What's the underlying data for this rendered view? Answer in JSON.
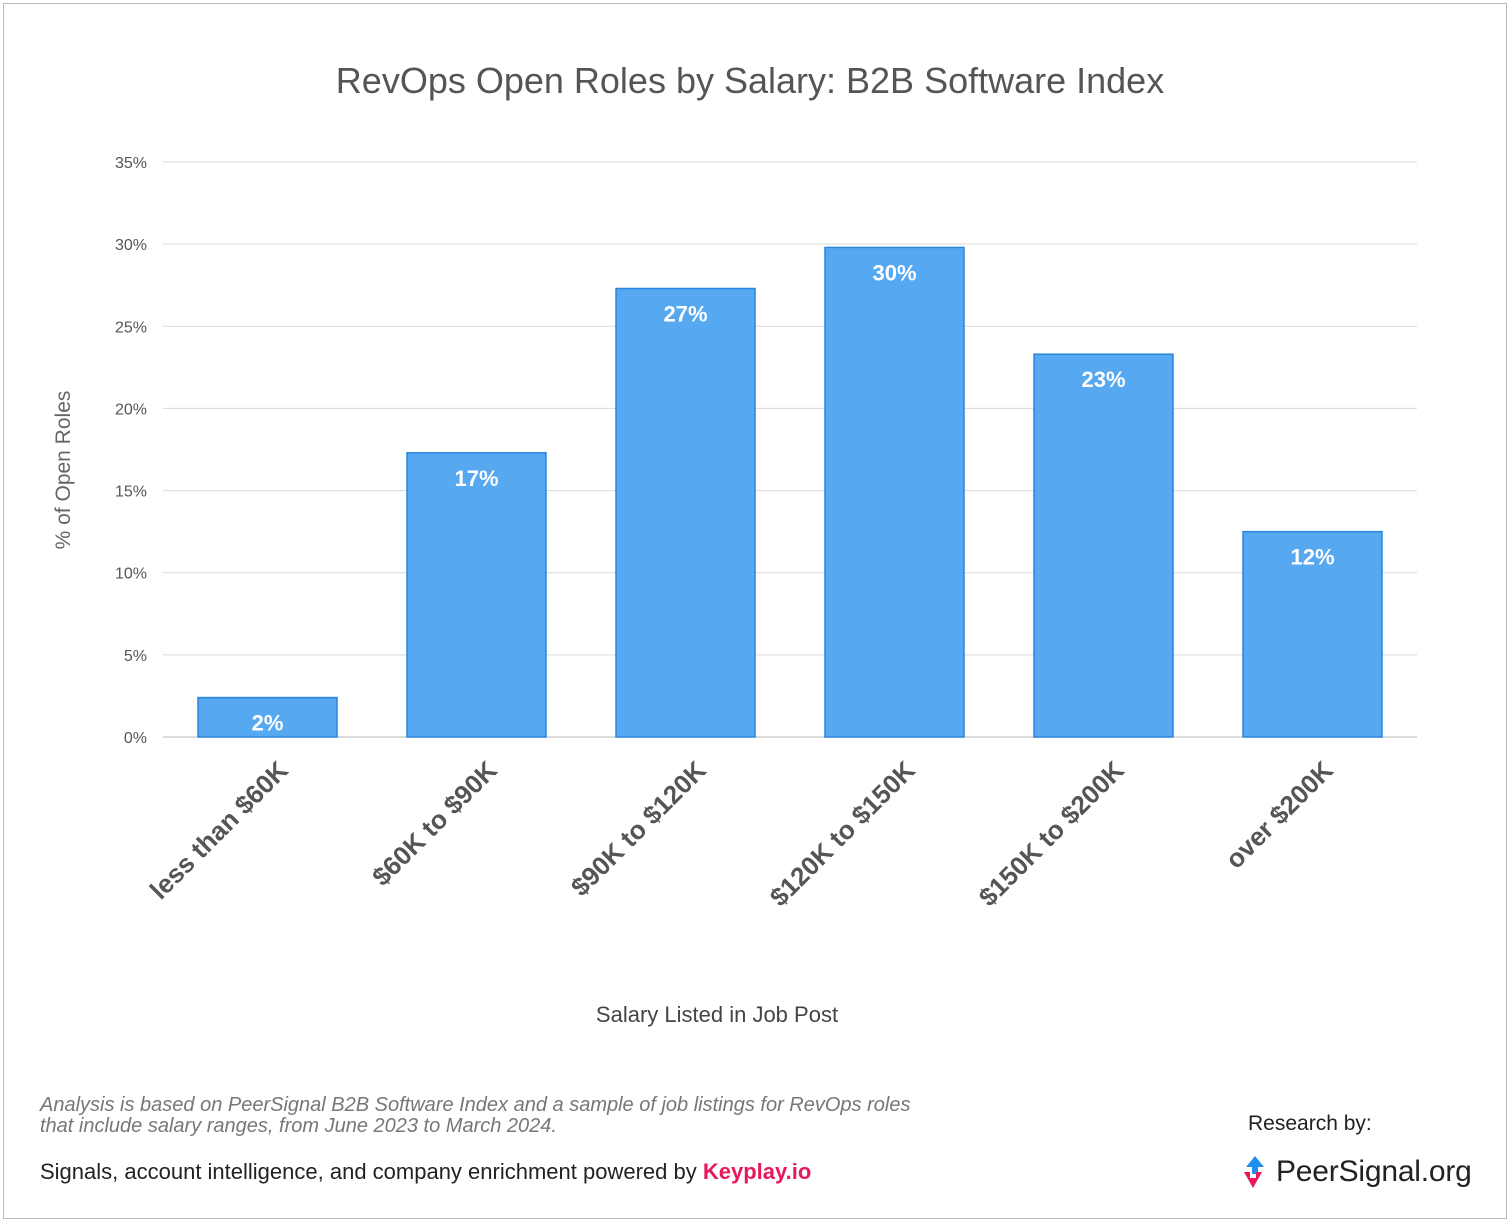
{
  "chart_data": {
    "type": "bar",
    "title": "RevOps Open Roles by Salary: B2B Software Index",
    "xlabel": "Salary Listed in Job Post",
    "ylabel": "% of Open Roles",
    "categories": [
      "less than $60K",
      "$60K to $90K",
      "$90K to $120K",
      "$120K to $150K",
      "$150K to $200K",
      "over $200K"
    ],
    "values": [
      2.4,
      17.3,
      27.3,
      29.8,
      23.3,
      12.5
    ],
    "data_labels": [
      "2%",
      "17%",
      "27%",
      "30%",
      "23%",
      "12%"
    ],
    "yticks": [
      0,
      5,
      10,
      15,
      20,
      25,
      30,
      35
    ],
    "ytick_labels": [
      "0%",
      "5%",
      "10%",
      "15%",
      "20%",
      "25%",
      "30%",
      "35%"
    ],
    "ylim": [
      0,
      35
    ],
    "grid": true,
    "bar_color": "#56a8f1",
    "bar_edge_color": "#2a86dc"
  },
  "footer": {
    "note": "Analysis is based on PeerSignal B2B Software Index and a sample of job listings for RevOps roles that include salary ranges, from June 2023 to March 2024.",
    "powered_prefix": "Signals, account intelligence, and company enrichment powered by",
    "powered_brand": "Keyplay.io",
    "research_label": "Research by:",
    "logo_text": "PeerSignal.org",
    "logo_icon": "peersignal-logo-icon"
  }
}
